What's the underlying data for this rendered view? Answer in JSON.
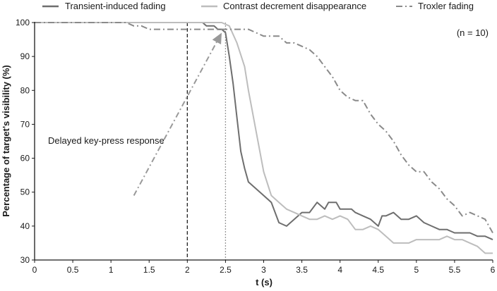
{
  "chart_data": {
    "type": "line",
    "xlabel": "t (s)",
    "ylabel": "Percentage of target's visibility (%)",
    "xlim": [
      0,
      6
    ],
    "ylim": [
      30,
      100
    ],
    "x_ticks": [
      0,
      0.5,
      1,
      1.5,
      2,
      2.5,
      3,
      3.5,
      4,
      4.5,
      5,
      5.5,
      6
    ],
    "x_tick_labels": [
      "0",
      "0.5",
      "1",
      "1.5",
      "2",
      "2.5",
      "3",
      "3.5",
      "4",
      "4.5",
      "5",
      "5.5",
      "6"
    ],
    "y_ticks": [
      30,
      40,
      50,
      60,
      70,
      80,
      90,
      100
    ],
    "y_tick_labels": [
      "30",
      "40",
      "50",
      "60",
      "70",
      "80",
      "90",
      "100"
    ],
    "grid": false,
    "legend_position": "top",
    "annotation_n": "(n = 10)",
    "annotation_delay": "Delayed key-press response",
    "annotation_arrow": {
      "from": [
        1.3,
        49
      ],
      "to": [
        2.45,
        97
      ]
    },
    "reference_lines": [
      {
        "x": 2.0,
        "style": "dashed",
        "color": "#222222"
      },
      {
        "x": 2.5,
        "style": "dotted",
        "color": "#999999"
      }
    ],
    "series": [
      {
        "name": "Transient-induced fading",
        "color": "#6e6e6e",
        "dash": "solid",
        "x": [
          0,
          2.2,
          2.25,
          2.35,
          2.4,
          2.45,
          2.5,
          2.55,
          2.6,
          2.65,
          2.7,
          2.75,
          2.8,
          2.9,
          3.0,
          3.1,
          3.2,
          3.3,
          3.4,
          3.5,
          3.6,
          3.7,
          3.8,
          3.85,
          3.9,
          3.95,
          4.0,
          4.1,
          4.15,
          4.2,
          4.3,
          4.4,
          4.5,
          4.55,
          4.6,
          4.7,
          4.8,
          4.9,
          5.0,
          5.1,
          5.2,
          5.3,
          5.4,
          5.5,
          5.6,
          5.7,
          5.8,
          5.9,
          6.0
        ],
        "y": [
          100,
          100,
          99,
          99,
          98,
          98,
          97,
          90,
          82,
          72,
          62,
          57,
          53,
          51,
          49,
          47,
          41,
          40,
          42,
          44,
          44,
          47,
          45,
          47,
          47,
          47,
          45,
          45,
          45,
          44,
          43,
          42,
          40,
          43,
          43,
          44,
          42,
          42,
          43,
          41,
          40,
          39,
          39,
          38,
          38,
          38,
          37,
          37,
          36
        ]
      },
      {
        "name": "Contrast decrement disappearance",
        "color": "#bdbdbd",
        "dash": "solid",
        "x": [
          0,
          2.45,
          2.55,
          2.65,
          2.75,
          2.8,
          2.9,
          3.0,
          3.1,
          3.2,
          3.3,
          3.4,
          3.5,
          3.6,
          3.7,
          3.8,
          3.9,
          4.0,
          4.1,
          4.2,
          4.3,
          4.4,
          4.5,
          4.6,
          4.7,
          4.8,
          4.9,
          5.0,
          5.1,
          5.2,
          5.3,
          5.4,
          5.5,
          5.6,
          5.7,
          5.8,
          5.9,
          6.0
        ],
        "y": [
          100,
          100,
          99,
          94,
          87,
          80,
          68,
          56,
          49,
          47,
          45,
          44,
          43,
          42,
          42,
          43,
          42,
          43,
          42,
          39,
          39,
          40,
          39,
          37,
          35,
          35,
          35,
          36,
          36,
          36,
          36,
          37,
          36,
          36,
          35,
          34,
          32,
          32
        ]
      },
      {
        "name": "Troxler fading",
        "color": "#8a8a8a",
        "dash": "dashdot",
        "x": [
          0,
          1.2,
          1.3,
          1.4,
          1.5,
          2.5,
          2.6,
          2.8,
          2.9,
          3.0,
          3.1,
          3.2,
          3.3,
          3.4,
          3.5,
          3.6,
          3.7,
          3.8,
          3.9,
          4.0,
          4.1,
          4.2,
          4.3,
          4.4,
          4.5,
          4.6,
          4.7,
          4.8,
          4.9,
          5.0,
          5.1,
          5.2,
          5.3,
          5.4,
          5.5,
          5.6,
          5.7,
          5.8,
          5.9,
          6.0
        ],
        "y": [
          100,
          100,
          99,
          99,
          98,
          98,
          98,
          98,
          97,
          96,
          96,
          96,
          94,
          94,
          93,
          92,
          90,
          87,
          84,
          80,
          78,
          77,
          77,
          73,
          70,
          68,
          65,
          61,
          58,
          56,
          56,
          53,
          51,
          48,
          46,
          43,
          44,
          43,
          42,
          38
        ]
      }
    ]
  }
}
